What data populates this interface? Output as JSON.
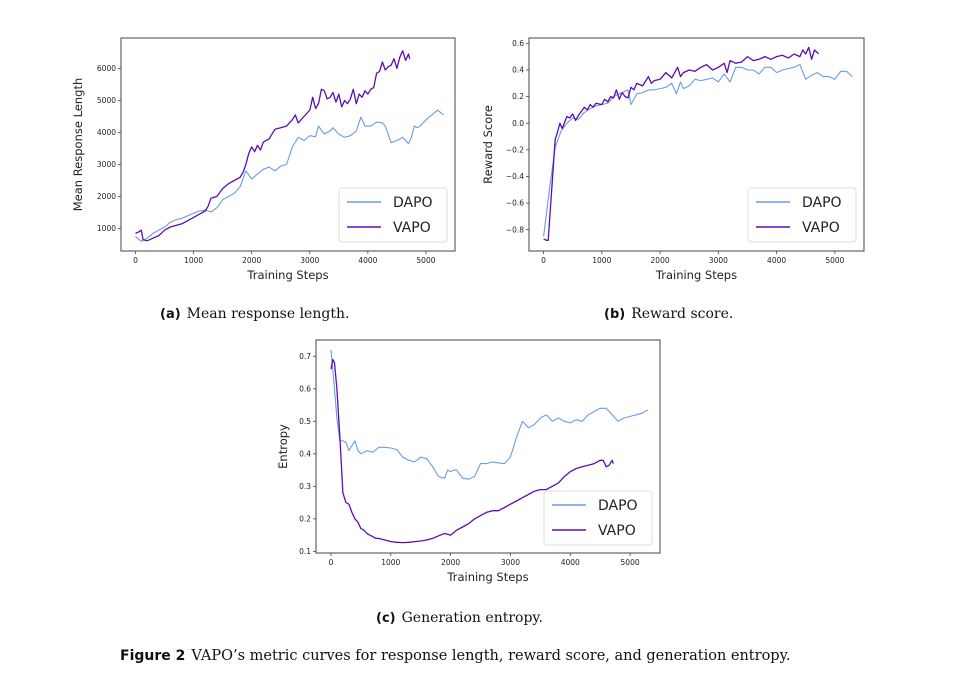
{
  "colors": {
    "DAPO": "#6a9be6",
    "VAPO": "#5b0fb0"
  },
  "captions": {
    "a_label": "(a)",
    "a_text": "Mean response length.",
    "b_label": "(b)",
    "b_text": "Reward score.",
    "c_label": "(c)",
    "c_text": "Generation entropy.",
    "figure_label": "Figure 2",
    "figure_text": "VAPO’s metric curves for response length, reward score, and generation entropy."
  },
  "chart_data": [
    {
      "id": "a",
      "type": "line",
      "title": "",
      "xlabel": "Training Steps",
      "ylabel": "Mean Response Length",
      "xlim": [
        -250,
        5500
      ],
      "ylim": [
        300,
        6950
      ],
      "xticks": [
        0,
        1000,
        2000,
        3000,
        4000,
        5000
      ],
      "xtick_labels": [
        "0",
        "1000",
        "2000",
        "3000",
        "4000",
        "5000"
      ],
      "yticks": [
        1000,
        2000,
        3000,
        4000,
        5000,
        6000
      ],
      "ytick_labels": [
        "1000",
        "2000",
        "3000",
        "4000",
        "5000",
        "6000"
      ],
      "grid": false,
      "legend": "bottom-right",
      "series": [
        {
          "name": "DAPO",
          "x": [
            0,
            100,
            200,
            300,
            400,
            500,
            600,
            700,
            800,
            900,
            1000,
            1100,
            1200,
            1300,
            1400,
            1500,
            1600,
            1700,
            1800,
            1900,
            2000,
            2100,
            2200,
            2300,
            2400,
            2500,
            2600,
            2700,
            2800,
            2900,
            3000,
            3100,
            3150,
            3250,
            3350,
            3400,
            3500,
            3600,
            3700,
            3800,
            3880,
            3950,
            4050,
            4150,
            4250,
            4300,
            4400,
            4500,
            4600,
            4700,
            4750,
            4800,
            4850,
            4900,
            5000,
            5100,
            5200,
            5300
          ],
          "y": [
            750,
            600,
            700,
            850,
            950,
            1050,
            1200,
            1280,
            1320,
            1400,
            1480,
            1550,
            1580,
            1520,
            1650,
            1900,
            2000,
            2100,
            2300,
            2800,
            2550,
            2700,
            2850,
            2920,
            2800,
            2950,
            3000,
            3550,
            3850,
            3750,
            3900,
            3870,
            4200,
            3950,
            4050,
            4150,
            3950,
            3850,
            3900,
            4050,
            4480,
            4200,
            4200,
            4320,
            4300,
            4200,
            3680,
            3750,
            3850,
            3650,
            3850,
            4200,
            4150,
            4200,
            4400,
            4550,
            4700,
            4550
          ]
        },
        {
          "name": "VAPO",
          "x": [
            0,
            60,
            100,
            130,
            200,
            300,
            400,
            500,
            600,
            700,
            800,
            900,
            1000,
            1100,
            1200,
            1250,
            1300,
            1400,
            1500,
            1600,
            1700,
            1800,
            1850,
            1900,
            1950,
            2000,
            2050,
            2100,
            2150,
            2200,
            2300,
            2400,
            2500,
            2600,
            2700,
            2750,
            2800,
            2850,
            2900,
            3000,
            3050,
            3100,
            3150,
            3200,
            3250,
            3300,
            3350,
            3400,
            3450,
            3500,
            3550,
            3600,
            3650,
            3700,
            3750,
            3800,
            3850,
            3900,
            3950,
            4000,
            4050,
            4100,
            4150,
            4200,
            4250,
            4300,
            4350,
            4400,
            4450,
            4500,
            4550,
            4600,
            4650,
            4700,
            4720
          ],
          "y": [
            850,
            900,
            950,
            650,
            620,
            700,
            780,
            950,
            1050,
            1100,
            1150,
            1250,
            1350,
            1450,
            1550,
            1700,
            1950,
            2000,
            2250,
            2400,
            2500,
            2600,
            2750,
            3000,
            3350,
            3550,
            3400,
            3600,
            3450,
            3700,
            3800,
            4100,
            4150,
            4200,
            4400,
            4550,
            4300,
            4400,
            4500,
            4700,
            5100,
            4750,
            4900,
            5350,
            5300,
            5050,
            5100,
            5250,
            4950,
            5200,
            4800,
            5000,
            4900,
            5050,
            5350,
            4900,
            5200,
            5100,
            5300,
            5200,
            5350,
            5400,
            5850,
            5900,
            6200,
            5950,
            6050,
            6100,
            6300,
            6000,
            6350,
            6550,
            6250,
            6450,
            6300
          ]
        }
      ]
    },
    {
      "id": "b",
      "type": "line",
      "title": "",
      "xlabel": "Training Steps",
      "ylabel": "Reward Score",
      "xlim": [
        -250,
        5500
      ],
      "ylim": [
        -0.96,
        0.64
      ],
      "xticks": [
        0,
        1000,
        2000,
        3000,
        4000,
        5000
      ],
      "xtick_labels": [
        "0",
        "1000",
        "2000",
        "3000",
        "4000",
        "5000"
      ],
      "yticks": [
        -0.8,
        -0.6,
        -0.4,
        -0.2,
        0.0,
        0.2,
        0.4,
        0.6
      ],
      "ytick_labels": [
        "−0.8",
        "−0.6",
        "−0.4",
        "−0.2",
        "0.0",
        "0.2",
        "0.4",
        "0.6"
      ],
      "grid": false,
      "legend": "bottom-right",
      "series": [
        {
          "name": "DAPO",
          "x": [
            0,
            100,
            200,
            300,
            400,
            500,
            600,
            700,
            800,
            900,
            1000,
            1100,
            1200,
            1300,
            1400,
            1450,
            1500,
            1600,
            1700,
            1800,
            1900,
            2000,
            2100,
            2200,
            2280,
            2350,
            2400,
            2500,
            2600,
            2700,
            2800,
            2900,
            3000,
            3100,
            3200,
            3300,
            3400,
            3500,
            3600,
            3700,
            3800,
            3900,
            4000,
            4100,
            4200,
            4300,
            4400,
            4500,
            4600,
            4700,
            4800,
            4900,
            5000,
            5100,
            5200,
            5300
          ],
          "y": [
            -0.85,
            -0.5,
            -0.18,
            -0.06,
            0.0,
            0.04,
            0.03,
            0.08,
            0.11,
            0.13,
            0.14,
            0.15,
            0.2,
            0.22,
            0.24,
            0.25,
            0.14,
            0.22,
            0.23,
            0.25,
            0.25,
            0.26,
            0.27,
            0.3,
            0.22,
            0.31,
            0.26,
            0.28,
            0.33,
            0.32,
            0.33,
            0.34,
            0.31,
            0.37,
            0.31,
            0.42,
            0.42,
            0.4,
            0.4,
            0.37,
            0.42,
            0.42,
            0.38,
            0.4,
            0.41,
            0.42,
            0.44,
            0.33,
            0.36,
            0.38,
            0.35,
            0.35,
            0.33,
            0.39,
            0.39,
            0.35
          ]
        },
        {
          "name": "VAPO",
          "x": [
            0,
            50,
            80,
            200,
            230,
            280,
            320,
            400,
            450,
            500,
            550,
            600,
            700,
            750,
            800,
            850,
            900,
            1000,
            1050,
            1100,
            1150,
            1200,
            1250,
            1300,
            1350,
            1400,
            1450,
            1500,
            1550,
            1600,
            1700,
            1800,
            1850,
            1900,
            2000,
            2100,
            2200,
            2300,
            2350,
            2400,
            2500,
            2600,
            2700,
            2800,
            2900,
            3000,
            3100,
            3150,
            3200,
            3300,
            3400,
            3500,
            3600,
            3700,
            3800,
            3900,
            4000,
            4100,
            4200,
            4300,
            4400,
            4450,
            4500,
            4550,
            4600,
            4650,
            4700,
            4720
          ],
          "y": [
            -0.87,
            -0.88,
            -0.88,
            -0.12,
            -0.08,
            0.0,
            -0.04,
            0.05,
            0.04,
            0.07,
            0.02,
            0.06,
            0.12,
            0.1,
            0.14,
            0.12,
            0.15,
            0.14,
            0.18,
            0.16,
            0.2,
            0.19,
            0.25,
            0.18,
            0.23,
            0.2,
            0.19,
            0.27,
            0.25,
            0.3,
            0.28,
            0.35,
            0.3,
            0.32,
            0.33,
            0.38,
            0.34,
            0.42,
            0.35,
            0.38,
            0.4,
            0.39,
            0.42,
            0.44,
            0.4,
            0.42,
            0.45,
            0.38,
            0.47,
            0.45,
            0.46,
            0.5,
            0.47,
            0.48,
            0.5,
            0.48,
            0.5,
            0.51,
            0.49,
            0.52,
            0.5,
            0.55,
            0.52,
            0.57,
            0.48,
            0.55,
            0.53,
            0.52
          ]
        }
      ]
    },
    {
      "id": "c",
      "type": "line",
      "title": "",
      "xlabel": "Training Steps",
      "ylabel": "Entropy",
      "xlim": [
        -250,
        5500
      ],
      "ylim": [
        0.095,
        0.75
      ],
      "xticks": [
        0,
        1000,
        2000,
        3000,
        4000,
        5000
      ],
      "xtick_labels": [
        "0",
        "1000",
        "2000",
        "3000",
        "4000",
        "5000"
      ],
      "yticks": [
        0.1,
        0.2,
        0.3,
        0.4,
        0.5,
        0.6,
        0.7
      ],
      "ytick_labels": [
        "0.1",
        "0.2",
        "0.3",
        "0.4",
        "0.5",
        "0.6",
        "0.7"
      ],
      "grid": false,
      "legend": "bottom-right",
      "series": [
        {
          "name": "DAPO",
          "x": [
            0,
            50,
            100,
            150,
            200,
            250,
            300,
            350,
            400,
            450,
            500,
            600,
            700,
            800,
            900,
            1000,
            1100,
            1200,
            1300,
            1400,
            1500,
            1600,
            1700,
            1800,
            1900,
            1950,
            2000,
            2050,
            2100,
            2200,
            2300,
            2400,
            2500,
            2600,
            2700,
            2800,
            2900,
            3000,
            3100,
            3200,
            3300,
            3400,
            3500,
            3600,
            3700,
            3800,
            3900,
            4000,
            4100,
            4200,
            4300,
            4400,
            4500,
            4600,
            4700,
            4800,
            4900,
            5000,
            5100,
            5200,
            5300
          ],
          "y": [
            0.72,
            0.62,
            0.51,
            0.44,
            0.44,
            0.435,
            0.41,
            0.425,
            0.44,
            0.41,
            0.4,
            0.41,
            0.405,
            0.42,
            0.42,
            0.418,
            0.413,
            0.39,
            0.38,
            0.375,
            0.39,
            0.385,
            0.36,
            0.33,
            0.325,
            0.35,
            0.345,
            0.35,
            0.35,
            0.325,
            0.322,
            0.33,
            0.37,
            0.37,
            0.375,
            0.372,
            0.37,
            0.39,
            0.45,
            0.5,
            0.48,
            0.49,
            0.51,
            0.52,
            0.5,
            0.51,
            0.5,
            0.495,
            0.505,
            0.5,
            0.52,
            0.53,
            0.54,
            0.54,
            0.52,
            0.5,
            0.51,
            0.515,
            0.52,
            0.525,
            0.535
          ]
        },
        {
          "name": "VAPO",
          "x": [
            0,
            30,
            60,
            100,
            150,
            200,
            250,
            300,
            350,
            400,
            450,
            500,
            550,
            600,
            650,
            700,
            750,
            800,
            900,
            1000,
            1100,
            1200,
            1300,
            1400,
            1500,
            1600,
            1700,
            1800,
            1900,
            2000,
            2100,
            2200,
            2300,
            2400,
            2500,
            2600,
            2700,
            2800,
            2900,
            3000,
            3100,
            3200,
            3300,
            3400,
            3500,
            3600,
            3700,
            3800,
            3900,
            4000,
            4100,
            4200,
            4300,
            4400,
            4500,
            4550,
            4600,
            4650,
            4700,
            4720
          ],
          "y": [
            0.66,
            0.69,
            0.68,
            0.6,
            0.45,
            0.28,
            0.25,
            0.245,
            0.22,
            0.2,
            0.19,
            0.17,
            0.165,
            0.155,
            0.15,
            0.145,
            0.14,
            0.14,
            0.135,
            0.13,
            0.128,
            0.127,
            0.128,
            0.13,
            0.132,
            0.135,
            0.14,
            0.148,
            0.155,
            0.15,
            0.165,
            0.175,
            0.185,
            0.2,
            0.21,
            0.22,
            0.225,
            0.225,
            0.235,
            0.245,
            0.255,
            0.265,
            0.275,
            0.285,
            0.29,
            0.29,
            0.3,
            0.31,
            0.33,
            0.345,
            0.355,
            0.36,
            0.365,
            0.37,
            0.38,
            0.38,
            0.36,
            0.365,
            0.38,
            0.37
          ]
        }
      ]
    }
  ]
}
